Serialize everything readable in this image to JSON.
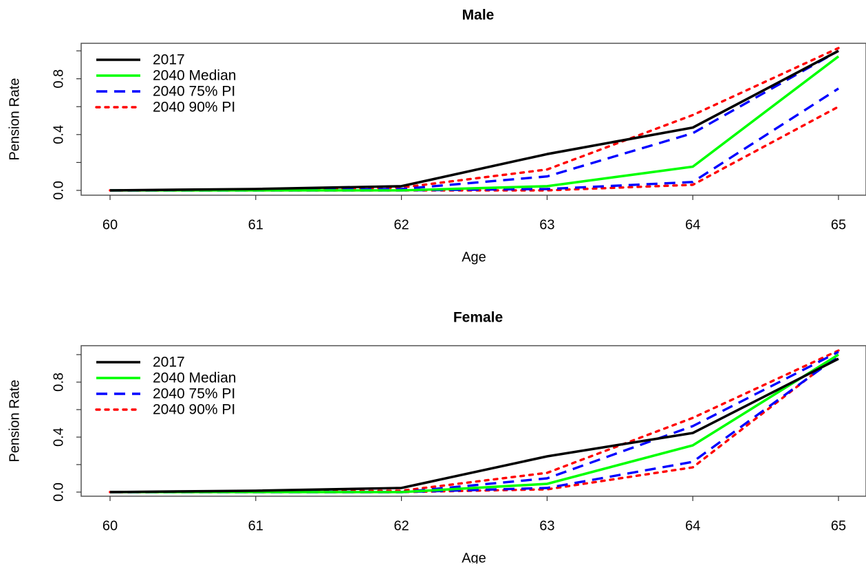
{
  "chart_data": [
    {
      "type": "line",
      "title": "Male",
      "xlabel": "Age",
      "ylabel": "Pension Rate",
      "x": [
        60,
        61,
        62,
        63,
        64,
        65
      ],
      "xlim": [
        60,
        65
      ],
      "ylim": [
        0,
        1
      ],
      "yticks": [
        "0.0",
        "0.4",
        "0.8"
      ],
      "grid": false,
      "legend_position": "top-left",
      "series": [
        {
          "name": "2017",
          "style": "solid",
          "color": "#000000",
          "values": [
            0.0,
            0.01,
            0.03,
            0.26,
            0.45,
            1.0
          ]
        },
        {
          "name": "2040 Median",
          "style": "solid",
          "color": "#00ff00",
          "values": [
            0.0,
            0.0,
            0.0,
            0.03,
            0.17,
            0.96
          ]
        },
        {
          "name": "2040 75% PI",
          "style": "dashed",
          "color": "#0000ff",
          "band": "upper",
          "values": [
            0.0,
            0.0,
            0.01,
            0.1,
            0.41,
            1.0
          ]
        },
        {
          "name": "",
          "style": "dashed",
          "color": "#0000ff",
          "band": "lower",
          "values": [
            0.0,
            0.0,
            0.0,
            0.01,
            0.06,
            0.73
          ]
        },
        {
          "name": "2040 90% PI",
          "style": "dotted",
          "color": "#ff0000",
          "band": "upper",
          "values": [
            0.0,
            0.0,
            0.02,
            0.15,
            0.54,
            1.02
          ]
        },
        {
          "name": "",
          "style": "dotted",
          "color": "#ff0000",
          "band": "lower",
          "values": [
            0.0,
            0.0,
            0.0,
            0.0,
            0.04,
            0.6
          ]
        }
      ]
    },
    {
      "type": "line",
      "title": "Female",
      "xlabel": "Age",
      "ylabel": "Pension Rate",
      "x": [
        60,
        61,
        62,
        63,
        64,
        65
      ],
      "xlim": [
        60,
        65
      ],
      "ylim": [
        0,
        1
      ],
      "yticks": [
        "0.0",
        "0.4",
        "0.8"
      ],
      "grid": false,
      "legend_position": "top-left",
      "series": [
        {
          "name": "2017",
          "style": "solid",
          "color": "#000000",
          "values": [
            0.0,
            0.01,
            0.03,
            0.26,
            0.43,
            0.97
          ]
        },
        {
          "name": "2040 Median",
          "style": "solid",
          "color": "#00ff00",
          "values": [
            0.0,
            0.0,
            0.0,
            0.06,
            0.34,
            1.0
          ]
        },
        {
          "name": "2040 75% PI",
          "style": "dashed",
          "color": "#0000ff",
          "band": "upper",
          "values": [
            0.0,
            0.0,
            0.0,
            0.1,
            0.48,
            1.02
          ]
        },
        {
          "name": "",
          "style": "dashed",
          "color": "#0000ff",
          "band": "lower",
          "values": [
            0.0,
            0.0,
            0.0,
            0.03,
            0.22,
            0.99
          ]
        },
        {
          "name": "2040 90% PI",
          "style": "dotted",
          "color": "#ff0000",
          "band": "upper",
          "values": [
            0.0,
            0.0,
            0.01,
            0.14,
            0.54,
            1.03
          ]
        },
        {
          "name": "",
          "style": "dotted",
          "color": "#ff0000",
          "band": "lower",
          "values": [
            0.0,
            0.0,
            0.0,
            0.02,
            0.18,
            1.0
          ]
        }
      ]
    }
  ]
}
